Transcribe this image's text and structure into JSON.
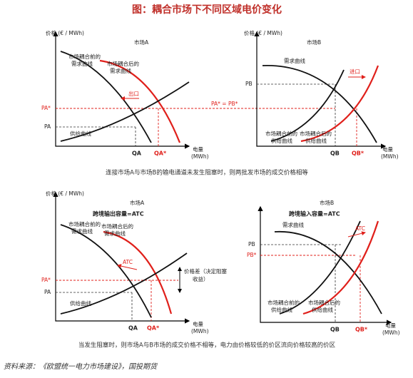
{
  "title": "图：耦合市场下不同区域电价变化",
  "panels": [
    {
      "price_axis": "价格 (€ / MWh)",
      "market": "市场A",
      "demand_before": [
        "市场耦合前的",
        "需求曲线"
      ],
      "demand_after": [
        "市场耦合后的",
        "需求曲线"
      ],
      "arrow_label": "出口",
      "p_star": "PA*",
      "p": "PA",
      "supply": "供给曲线",
      "q": "QA",
      "q_star": "QA*",
      "quantity_axis": [
        "电量",
        "(MWh)"
      ]
    },
    {
      "price_axis": "价格 (€ / MWh)",
      "market": "市场B",
      "demand": "需求曲线",
      "arrow_label": "进口",
      "p": "PB",
      "p_star": "PA* = PB*",
      "supply_before": [
        "市场耦合前的",
        "供给曲线"
      ],
      "supply_after": [
        "市场耦合后的",
        "供给曲线"
      ],
      "q": "QB",
      "q_star": "QB*",
      "quantity_axis": [
        "电量",
        "(MWh)"
      ]
    },
    {
      "price_axis": "价格 (€ / MWh)",
      "market": "市场A",
      "capacity": "跨境输出容量=ATC",
      "demand_before": [
        "市场耦合前的",
        "需求曲线"
      ],
      "demand_after": [
        "市场耦合后的",
        "需求曲线"
      ],
      "arrow_label": "ATC",
      "p_star": "PA*",
      "p": "PA",
      "supply": "供给曲线",
      "price_gap": [
        "价格差（决定阻塞",
        "收益）"
      ],
      "q": "QA",
      "q_star": "QA*",
      "quantity_axis": [
        "电量",
        "(MWh)"
      ]
    },
    {
      "market": "市场B",
      "capacity": "跨境输入容量=ATC",
      "demand": "需求曲线",
      "arrow_label": "ATC",
      "p": "PB",
      "p_star": "PB*",
      "supply_before": [
        "市场耦合前的",
        "供给曲线"
      ],
      "supply_after": [
        "市场耦合后的",
        "供给曲线"
      ],
      "q": "QB",
      "q_star": "QB*",
      "quantity_axis": [
        "电量",
        "(MWh)"
      ]
    }
  ],
  "captions": [
    "连接市场A与市场B的输电通道未发生阻塞时，则两批发市场的成交价格相等",
    "当发生阻塞时，则市场A与B市场的成交价格不相等，电力由价格较低的价区流向价格较高的价区"
  ],
  "source": "资料来源：《欧盟统一电力市场建设》，国投期货"
}
